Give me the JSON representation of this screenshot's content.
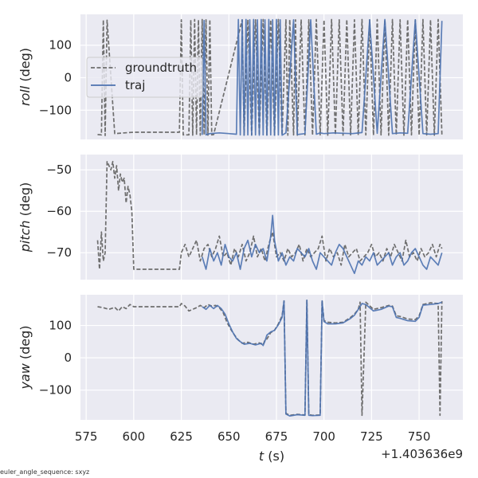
{
  "chart_data": [
    {
      "type": "line",
      "ylabel_italic": "roll",
      "ylabel_unit": " (deg)",
      "ylim": [
        -190,
        195
      ],
      "yticks": [
        100,
        0,
        -100
      ],
      "ytick_labels": [
        "100",
        "0",
        "−100"
      ],
      "xlim": [
        572,
        773
      ],
      "xticks": [
        575,
        600,
        625,
        650,
        675,
        700,
        725,
        750
      ],
      "legend": {
        "placement": "center-left",
        "entries": [
          "groundtruth",
          "traj"
        ]
      },
      "series": [
        {
          "name": "groundtruth",
          "style": "dashed",
          "color": "#6e6e6e",
          "kind": "wrap",
          "x": [
            581,
            583,
            584,
            585,
            586,
            590,
            595,
            600,
            624,
            625,
            626,
            629,
            630,
            631,
            632,
            633,
            634,
            635,
            636,
            637,
            638,
            639,
            640,
            641,
            642,
            657,
            658,
            660,
            662,
            664,
            666,
            668,
            670,
            672,
            674,
            676,
            678,
            680,
            681,
            682,
            684,
            685,
            686,
            688,
            690,
            692,
            694,
            696,
            698,
            700,
            702,
            704,
            706,
            708,
            710,
            712,
            714,
            716,
            718,
            720,
            722,
            724,
            726,
            728,
            730,
            732,
            734,
            736,
            738,
            740,
            742,
            744,
            746,
            748,
            750,
            752,
            754,
            756,
            758,
            760,
            762
          ],
          "y": [
            -175,
            -176,
            178,
            -178,
            177,
            -172,
            -170,
            -168,
            -168,
            178,
            -176,
            -176,
            178,
            -177,
            179,
            -176,
            178,
            -177,
            179,
            -176,
            178,
            -177,
            179,
            -176,
            -175,
            178,
            -177,
            179,
            -176,
            178,
            -177,
            179,
            -176,
            178,
            -177,
            179,
            -176,
            178,
            -177,
            179,
            -176,
            178,
            -177,
            179,
            -176,
            178,
            -177,
            179,
            -176,
            178,
            -177,
            179,
            -176,
            178,
            -177,
            179,
            -176,
            178,
            -177,
            179,
            -176,
            178,
            -177,
            179,
            -176,
            178,
            -177,
            179,
            -176,
            178,
            -177,
            179,
            -176,
            178,
            -177,
            179,
            -176,
            178,
            -177,
            179,
            -176
          ]
        },
        {
          "name": "traj",
          "style": "solid",
          "color": "#4c72b0",
          "kind": "wrap",
          "x": [
            636,
            637,
            638,
            640,
            645,
            650,
            654,
            655,
            656,
            657,
            658,
            659,
            660,
            661,
            662,
            663,
            664,
            665,
            666,
            667,
            668,
            669,
            670,
            671,
            672,
            673,
            674,
            675,
            676,
            677,
            678,
            680,
            684,
            686,
            690,
            693,
            696,
            698,
            700,
            705,
            710,
            715,
            720,
            724,
            728,
            732,
            736,
            740,
            744,
            748,
            752,
            756,
            760,
            762
          ],
          "y": [
            -176,
            176,
            -176,
            -172,
            -170,
            -172,
            -174,
            179,
            -176,
            178,
            -177,
            179,
            -176,
            178,
            -177,
            179,
            -176,
            178,
            -177,
            179,
            -176,
            178,
            -177,
            179,
            -176,
            178,
            -177,
            179,
            -176,
            178,
            -177,
            -170,
            178,
            -175,
            -172,
            178,
            -174,
            -170,
            -172,
            -170,
            -171,
            -172,
            -169,
            178,
            -171,
            179,
            -172,
            -170,
            -171,
            178,
            -172,
            -174,
            -172,
            175
          ]
        }
      ]
    },
    {
      "type": "line",
      "ylabel_italic": "pitch",
      "ylabel_unit": " (deg)",
      "ylim": [
        -76.5,
        -46.3
      ],
      "yticks": [
        -50,
        -60,
        -70
      ],
      "ytick_labels": [
        "−50",
        "−60",
        "−70"
      ],
      "xlim": [
        572,
        773
      ],
      "xticks": [
        575,
        600,
        625,
        650,
        675,
        700,
        725,
        750
      ],
      "series": [
        {
          "name": "groundtruth",
          "style": "dashed",
          "color": "#6e6e6e",
          "x": [
            581,
            582,
            583,
            584,
            585,
            586,
            587,
            588,
            589,
            590,
            591,
            592,
            593,
            594,
            595,
            596,
            597,
            598,
            599,
            600,
            610,
            620,
            624,
            625,
            627,
            629,
            631,
            633,
            635,
            637,
            639,
            641,
            643,
            645,
            647,
            649,
            651,
            653,
            655,
            657,
            659,
            661,
            663,
            665,
            667,
            669,
            671,
            673,
            675,
            677,
            679,
            681,
            683,
            685,
            687,
            689,
            691,
            693,
            695,
            697,
            699,
            701,
            703,
            705,
            707,
            709,
            711,
            713,
            715,
            717,
            719,
            721,
            723,
            725,
            727,
            729,
            731,
            733,
            735,
            737,
            739,
            741,
            743,
            745,
            747,
            749,
            751,
            753,
            755,
            757,
            759,
            761,
            762
          ],
          "y": [
            -67,
            -74,
            -65,
            -72,
            -70,
            -48,
            -49,
            -50,
            -48,
            -52,
            -49,
            -55,
            -51,
            -53,
            -52,
            -58,
            -54,
            -56,
            -60,
            -74,
            -74,
            -74,
            -74,
            -70,
            -68,
            -71,
            -69,
            -67,
            -72,
            -69,
            -68,
            -71,
            -69,
            -66,
            -71,
            -70,
            -73,
            -69,
            -71,
            -68,
            -72,
            -70,
            -66,
            -71,
            -69,
            -72,
            -68,
            -65,
            -71,
            -70,
            -72,
            -69,
            -71,
            -70,
            -68,
            -72,
            -69,
            -71,
            -70,
            -69,
            -66,
            -72,
            -69,
            -71,
            -70,
            -73,
            -68,
            -71,
            -70,
            -69,
            -72,
            -71,
            -70,
            -68,
            -71,
            -70,
            -72,
            -69,
            -71,
            -68,
            -70,
            -72,
            -67,
            -71,
            -70,
            -72,
            -69,
            -71,
            -70,
            -68,
            -71,
            -68,
            -69
          ]
        },
        {
          "name": "traj",
          "style": "solid",
          "color": "#4c72b0",
          "x": [
            636,
            638,
            640,
            642,
            644,
            646,
            648,
            650,
            652,
            654,
            656,
            658,
            660,
            662,
            664,
            666,
            668,
            670,
            672,
            673,
            674,
            676,
            678,
            680,
            682,
            684,
            686,
            688,
            690,
            692,
            694,
            696,
            698,
            700,
            702,
            704,
            706,
            708,
            710,
            712,
            714,
            716,
            718,
            720,
            722,
            724,
            726,
            728,
            730,
            732,
            734,
            736,
            738,
            740,
            742,
            744,
            746,
            748,
            750,
            752,
            754,
            756,
            758,
            760,
            762
          ],
          "y": [
            -71,
            -74,
            -69,
            -72,
            -70,
            -73,
            -68,
            -71,
            -72,
            -70,
            -74,
            -69,
            -67,
            -71,
            -68,
            -70,
            -69,
            -72,
            -66,
            -61,
            -67,
            -72,
            -70,
            -73,
            -71,
            -72,
            -69,
            -70,
            -71,
            -69,
            -72,
            -74,
            -70,
            -71,
            -72,
            -73,
            -70,
            -68,
            -69,
            -71,
            -73,
            -75,
            -72,
            -73,
            -71,
            -72,
            -70,
            -73,
            -72,
            -71,
            -70,
            -73,
            -71,
            -70,
            -73,
            -72,
            -70,
            -69,
            -71,
            -73,
            -74,
            -71,
            -72,
            -73,
            -70
          ]
        }
      ]
    },
    {
      "type": "line",
      "ylabel_italic": "yaw",
      "ylabel_unit": " (deg)",
      "ylim": [
        -192,
        195
      ],
      "yticks": [
        100,
        0,
        -100
      ],
      "ytick_labels": [
        "100",
        "0",
        "−100"
      ],
      "xlim": [
        572,
        773
      ],
      "xticks": [
        575,
        600,
        625,
        650,
        675,
        700,
        725,
        750
      ],
      "xtick_labels": [
        "575",
        "600",
        "625",
        "650",
        "675",
        "700",
        "725",
        "750"
      ],
      "xlabel_italic": "t",
      "xlabel_unit": " (s)",
      "offset_text": "+1.403636e9",
      "series": [
        {
          "name": "groundtruth",
          "style": "dashed",
          "color": "#6e6e6e",
          "kind": "wrap",
          "x": [
            581,
            584,
            587,
            590,
            592,
            594,
            596,
            598,
            600,
            610,
            620,
            624,
            625,
            627,
            629,
            631,
            633,
            635,
            637,
            639,
            641,
            643,
            645,
            647,
            649,
            651,
            653,
            655,
            657,
            660,
            663,
            666,
            668,
            669,
            670,
            672,
            674,
            676,
            678,
            679,
            680,
            682,
            686,
            690,
            691,
            692,
            694,
            698,
            699,
            700,
            702,
            706,
            710,
            714,
            716,
            718,
            719,
            720,
            722,
            726,
            730,
            734,
            736,
            738,
            740,
            744,
            748,
            750,
            752,
            756,
            760,
            761,
            762
          ],
          "y": [
            158,
            155,
            150,
            156,
            145,
            158,
            152,
            165,
            158,
            158,
            158,
            158,
            168,
            160,
            145,
            150,
            155,
            162,
            155,
            165,
            160,
            162,
            155,
            140,
            110,
            88,
            70,
            55,
            45,
            48,
            42,
            46,
            40,
            55,
            58,
            78,
            85,
            105,
            130,
            176,
            -172,
            -178,
            -175,
            -177,
            178,
            -176,
            -178,
            -177,
            178,
            115,
            110,
            108,
            110,
            125,
            135,
            150,
            172,
            -178,
            172,
            150,
            155,
            162,
            160,
            130,
            128,
            120,
            118,
            130,
            165,
            170,
            168,
            -178,
            175
          ]
        },
        {
          "name": "traj",
          "style": "solid",
          "color": "#4c72b0",
          "kind": "wrap",
          "x": [
            636,
            638,
            640,
            642,
            644,
            646,
            648,
            650,
            652,
            654,
            656,
            658,
            661,
            664,
            667,
            668,
            669,
            670,
            672,
            674,
            676,
            678,
            679,
            680,
            682,
            686,
            690,
            691,
            692,
            694,
            698,
            699,
            700,
            702,
            706,
            710,
            714,
            716,
            718,
            720,
            722,
            726,
            730,
            734,
            736,
            738,
            740,
            744,
            748,
            750,
            752,
            756,
            760,
            762
          ],
          "y": [
            158,
            150,
            162,
            152,
            162,
            152,
            135,
            105,
            80,
            60,
            50,
            42,
            45,
            40,
            45,
            38,
            52,
            70,
            80,
            85,
            102,
            125,
            176,
            -174,
            -180,
            -176,
            -178,
            178,
            -178,
            -179,
            -178,
            176,
            112,
            105,
            105,
            108,
            122,
            132,
            150,
            168,
            165,
            145,
            150,
            160,
            158,
            125,
            122,
            115,
            113,
            125,
            163,
            165,
            168,
            172
          ]
        }
      ]
    }
  ],
  "footer": "euler_angle_sequence: sxyz"
}
